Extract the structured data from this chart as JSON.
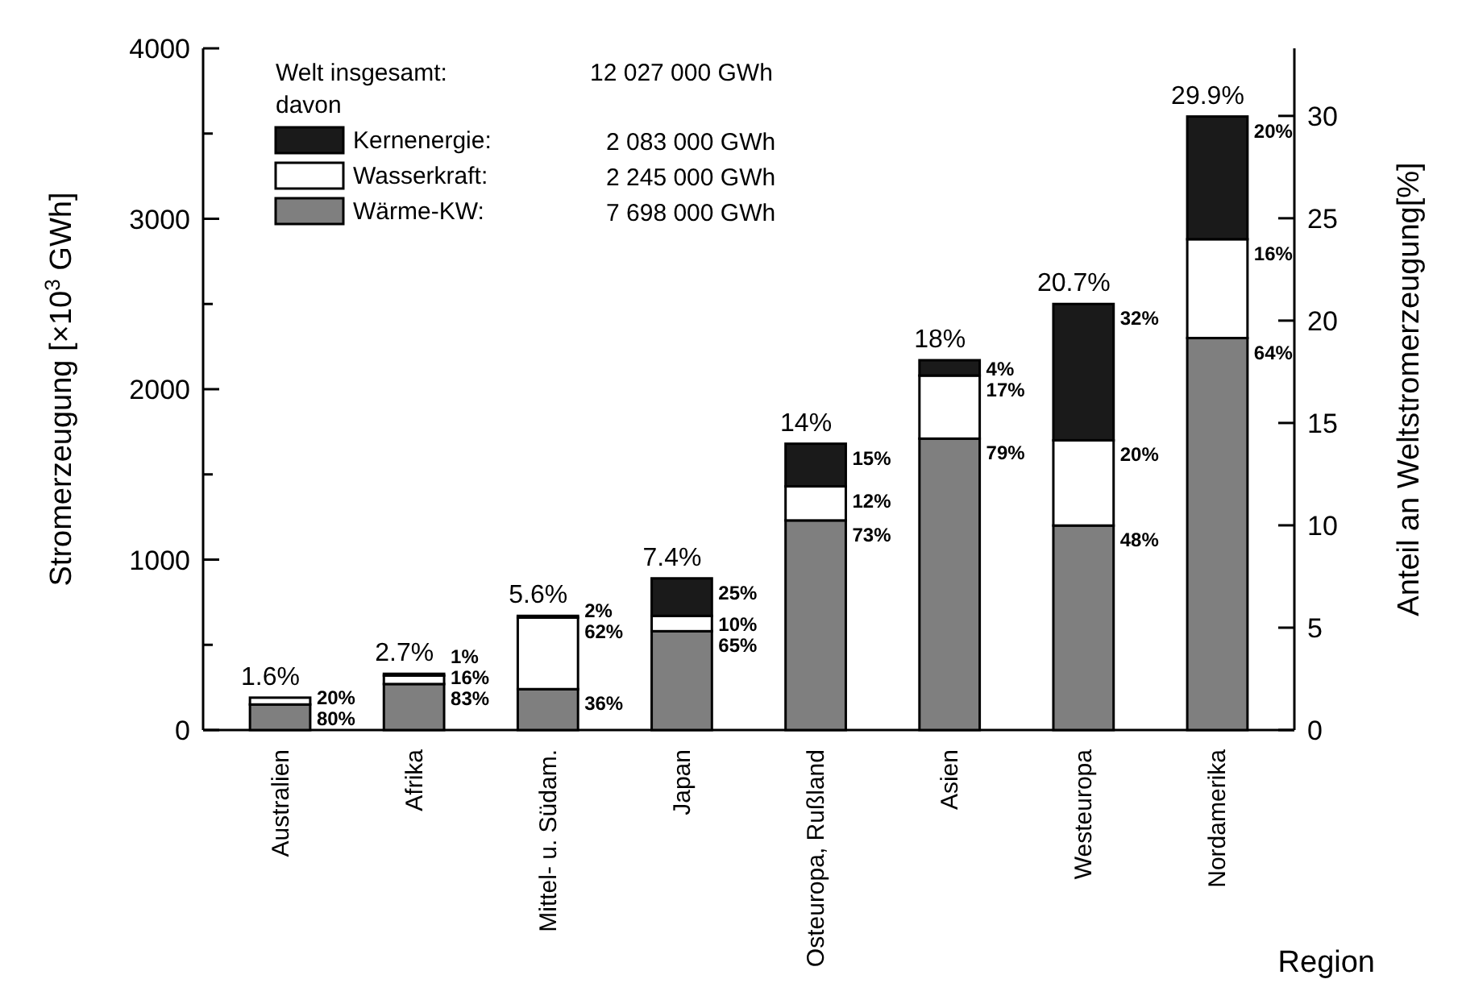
{
  "chart_data": {
    "type": "bar",
    "stacked": true,
    "xlabel": "Region",
    "ylabel": "Stromerzeugung [×10$^{3}$ GWh]",
    "y2label": "Anteil an Weltstromerzeugung[%]",
    "categories": [
      "Australien",
      "Afrika",
      "Mittel- u. Südam.",
      "Japan",
      "Osteuropa, Rußland",
      "Asien",
      "Westeuropa",
      "Nordamerika"
    ],
    "series": [
      {
        "name": "Wärme-KW:",
        "color": "#7f7f7f",
        "values": [
          150,
          270,
          240,
          580,
          1230,
          1710,
          1200,
          2300
        ]
      },
      {
        "name": "Wasserkraft:",
        "color": "#ffffff",
        "values": [
          40,
          50,
          420,
          90,
          200,
          370,
          500,
          580
        ]
      },
      {
        "name": "Kernenergie:",
        "color": "#1a1a1a",
        "values": [
          0,
          10,
          10,
          220,
          250,
          90,
          800,
          720
        ]
      }
    ],
    "ylim": [
      0,
      4000
    ],
    "yticks": [
      0,
      {
        "value": 500,
        "label": null
      },
      1000,
      {
        "value": 1500,
        "label": null
      },
      2000,
      {
        "value": 2500,
        "label": null
      },
      3000,
      {
        "value": 3500,
        "label": null
      },
      4000
    ],
    "y2lim": [
      0,
      33.3
    ],
    "y2ticks": [
      0,
      5,
      10,
      15,
      20,
      25,
      30
    ],
    "legend": "top left",
    "grid": false,
    "annotations": [
      "Welt insgesamt:",
      "12 027 000 GWh",
      "davon",
      "2 083 000 GWh",
      "2 245 000 GWh",
      "7 698 000 GWh",
      "1.6%",
      "2.7%",
      "5.6%",
      "7.4%",
      "14%",
      "18%",
      "20.7%",
      "29.9%",
      {
        "text": "80%",
        "x": "Australien",
        "y": 150
      },
      {
        "text": "20%",
        "x": "Australien",
        "y": 190
      },
      {
        "text": "83%",
        "x": "Afrika",
        "y": 270
      },
      {
        "text": "16%",
        "x": "Afrika",
        "y": 320
      },
      {
        "text": "1%",
        "x": "Afrika",
        "y": 330
      },
      {
        "text": "36%",
        "x": "Mittel- u. Südam.",
        "y": 240
      },
      {
        "text": "62%",
        "x": "Mittel- u. Südam.",
        "y": 660
      },
      {
        "text": "2%",
        "x": "Mittel- u. Südam.",
        "y": 670
      },
      {
        "text": "65%",
        "x": "Japan",
        "y": 580
      },
      {
        "text": "10%",
        "x": "Japan",
        "y": 670
      },
      {
        "text": "25%",
        "x": "Japan",
        "y": 890
      },
      {
        "text": "73%",
        "x": "Osteuropa, Rußland",
        "y": 1230
      },
      {
        "text": "12%",
        "x": "Osteuropa, Rußland",
        "y": 1430
      },
      {
        "text": "15%",
        "x": "Osteuropa, Rußland",
        "y": 1680
      },
      {
        "text": "79%",
        "x": "Asien",
        "y": 1710
      },
      {
        "text": "17%",
        "x": "Asien",
        "y": 2080
      },
      {
        "text": "4%",
        "x": "Asien",
        "y": 2170
      },
      {
        "text": "48%",
        "x": "Westeuropa",
        "y": 1200
      },
      {
        "text": "20%",
        "x": "Westeuropa",
        "y": 1700
      },
      {
        "text": "32%",
        "x": "Westeuropa",
        "y": 2500
      },
      {
        "text": "64%",
        "x": "Nordamerika",
        "y": 2300
      },
      {
        "text": "16%",
        "x": "Nordamerika",
        "y": 2880
      },
      {
        "text": "20%",
        "x": "Nordamerika",
        "y": 3600
      }
    ]
  }
}
